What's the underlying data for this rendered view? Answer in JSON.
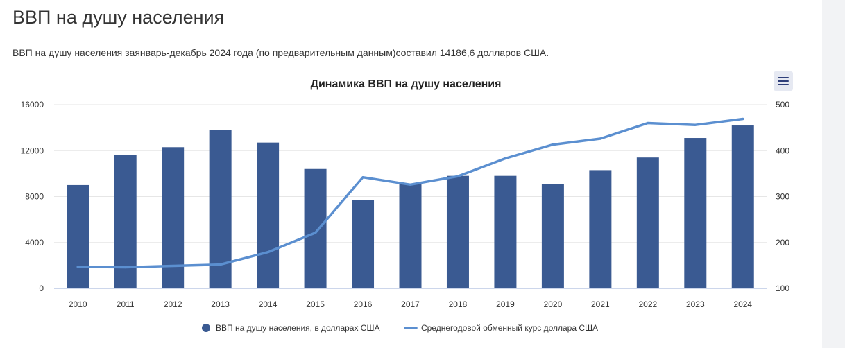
{
  "page": {
    "title": "ВВП на душу населения",
    "intro": "ВВП на душу населения заянварь-декабрь 2024 года (по предварительным данным)составил 14186,6 долларов США."
  },
  "menu": {
    "icon": "hamburger-menu-icon"
  },
  "chart_data": {
    "type": "bar",
    "title": "Динамика ВВП на душу населения",
    "categories": [
      "2010",
      "2011",
      "2012",
      "2013",
      "2014",
      "2015",
      "2016",
      "2017",
      "2018",
      "2019",
      "2020",
      "2021",
      "2022",
      "2023",
      "2024"
    ],
    "series": [
      {
        "name": "ВВП на душу населения, в долларах США",
        "type": "bar",
        "axis": "left",
        "color": "#3a5a92",
        "values": [
          9000,
          11600,
          12300,
          13800,
          12700,
          10400,
          7700,
          9100,
          9800,
          9800,
          9100,
          10300,
          11400,
          13100,
          14187
        ]
      },
      {
        "name": "Среднегодовой обменный курс доллара США",
        "type": "line",
        "axis": "right",
        "color": "#5b8fd0",
        "values": [
          147,
          146,
          149,
          152,
          179,
          221,
          342,
          326,
          344,
          383,
          413,
          426,
          460,
          456,
          469
        ]
      }
    ],
    "y_left": {
      "min": 0,
      "max": 16000,
      "ticks": [
        0,
        4000,
        8000,
        12000,
        16000
      ]
    },
    "y_right": {
      "min": 100,
      "max": 500,
      "ticks": [
        100,
        200,
        300,
        400,
        500
      ]
    },
    "grid": true,
    "legend": "bottom-center"
  }
}
